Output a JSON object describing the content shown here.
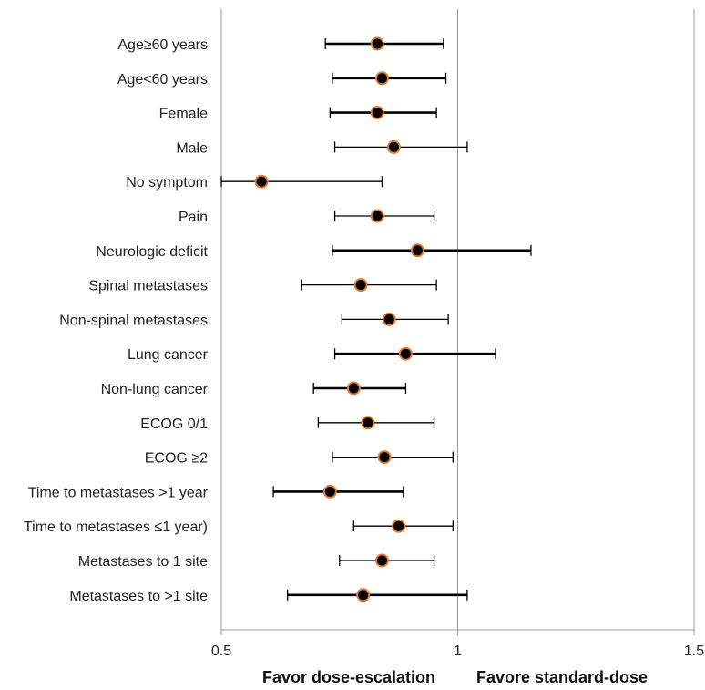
{
  "chart_data": {
    "type": "forest",
    "x_axis": {
      "min": 0.5,
      "max": 1.5,
      "ticks": [
        0.5,
        1,
        1.5
      ],
      "tick_labels": [
        "0.5",
        "1",
        "1.5"
      ],
      "reference_line": 1
    },
    "x_labels": {
      "left": "Favor dose-escalation",
      "right": "Favore standard-dose"
    },
    "grid": false,
    "colors": {
      "marker_fill": "#000000",
      "marker_edge": "#e07a2f",
      "ci_line": "#000000",
      "axis": "#9a9a9a"
    },
    "rows": [
      {
        "label": "Age≥60  years",
        "estimate": 0.83,
        "lower": 0.72,
        "upper": 0.97,
        "bold": true
      },
      {
        "label": "Age<60 years",
        "estimate": 0.84,
        "lower": 0.735,
        "upper": 0.975,
        "bold": true
      },
      {
        "label": "Female",
        "estimate": 0.83,
        "lower": 0.73,
        "upper": 0.955,
        "bold": true
      },
      {
        "label": "Male",
        "estimate": 0.865,
        "lower": 0.74,
        "upper": 1.02,
        "bold": false
      },
      {
        "label": "No symptom",
        "estimate": 0.585,
        "lower": 0.5,
        "upper": 0.84,
        "bold": false
      },
      {
        "label": "Pain",
        "estimate": 0.83,
        "lower": 0.74,
        "upper": 0.95,
        "bold": false
      },
      {
        "label": "Neurologic deficit",
        "estimate": 0.915,
        "lower": 0.735,
        "upper": 1.155,
        "bold": true
      },
      {
        "label": "Spinal metastases",
        "estimate": 0.795,
        "lower": 0.67,
        "upper": 0.955,
        "bold": false
      },
      {
        "label": "Non-spinal metastases",
        "estimate": 0.855,
        "lower": 0.755,
        "upper": 0.98,
        "bold": false
      },
      {
        "label": "Lung cancer",
        "estimate": 0.89,
        "lower": 0.74,
        "upper": 1.08,
        "bold": true
      },
      {
        "label": "Non-lung cancer",
        "estimate": 0.78,
        "lower": 0.695,
        "upper": 0.89,
        "bold": true
      },
      {
        "label": "ECOG 0/1",
        "estimate": 0.81,
        "lower": 0.705,
        "upper": 0.95,
        "bold": false
      },
      {
        "label": "ECOG ≥2",
        "estimate": 0.845,
        "lower": 0.735,
        "upper": 0.99,
        "bold": false
      },
      {
        "label": "Time to metastases >1 year",
        "estimate": 0.73,
        "lower": 0.61,
        "upper": 0.885,
        "bold": true
      },
      {
        "label": "Time to metastases ≤1 year)",
        "estimate": 0.875,
        "lower": 0.78,
        "upper": 0.99,
        "bold": false
      },
      {
        "label": "Metastases to 1 site",
        "estimate": 0.84,
        "lower": 0.75,
        "upper": 0.95,
        "bold": false
      },
      {
        "label": "Metastases to >1 site",
        "estimate": 0.8,
        "lower": 0.64,
        "upper": 1.02,
        "bold": true
      }
    ]
  }
}
